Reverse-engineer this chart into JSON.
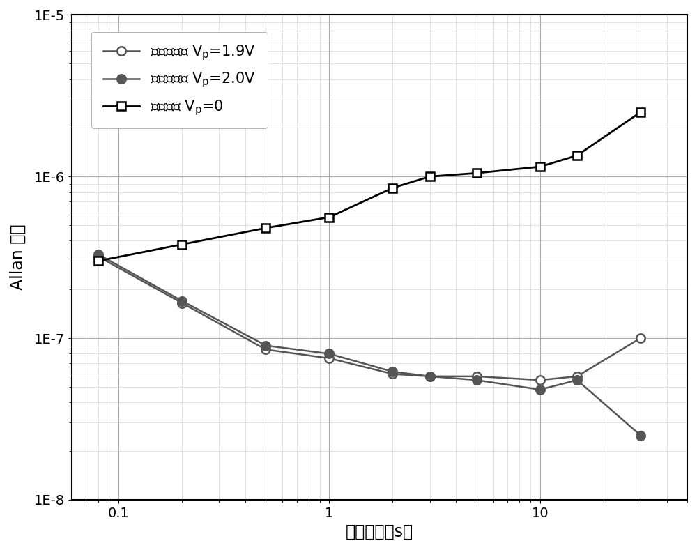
{
  "series": [
    {
      "label": "参数泵强度 V$_\\mathrm{p}$=1.9V",
      "x": [
        0.08,
        0.2,
        0.5,
        1.0,
        2.0,
        3.0,
        5.0,
        10.0,
        15.0,
        30.0
      ],
      "y": [
        3.2e-07,
        1.65e-07,
        8.5e-08,
        7.5e-08,
        6e-08,
        5.8e-08,
        5.8e-08,
        5.5e-08,
        5.8e-08,
        1e-07
      ],
      "marker": "o",
      "markerface": "white",
      "color": "#555555",
      "linewidth": 1.8,
      "markersize": 9,
      "zorder": 3
    },
    {
      "label": "参数泵强度 V$_\\mathrm{p}$=2.0V",
      "x": [
        0.08,
        0.2,
        0.5,
        1.0,
        2.0,
        3.0,
        5.0,
        10.0,
        15.0,
        30.0
      ],
      "y": [
        3.3e-07,
        1.7e-07,
        9e-08,
        8e-08,
        6.2e-08,
        5.8e-08,
        5.5e-08,
        4.8e-08,
        5.5e-08,
        2.5e-08
      ],
      "marker": "o",
      "markerface": "#555555",
      "color": "#555555",
      "linewidth": 1.8,
      "markersize": 9,
      "zorder": 3
    },
    {
      "label": "无参数泵 V$_\\mathrm{p}$=0",
      "x": [
        0.08,
        0.2,
        0.5,
        1.0,
        2.0,
        3.0,
        5.0,
        10.0,
        15.0,
        30.0
      ],
      "y": [
        3e-07,
        3.8e-07,
        4.8e-07,
        5.6e-07,
        8.5e-07,
        1e-06,
        1.05e-06,
        1.15e-06,
        1.35e-06,
        2.5e-06
      ],
      "marker": "s",
      "markerface": "white",
      "color": "#000000",
      "linewidth": 2.0,
      "markersize": 9,
      "zorder": 4
    }
  ],
  "xlabel": "积分时间（s）",
  "ylabel": "Allan 方差",
  "xlim": [
    0.06,
    50
  ],
  "ylim": [
    1e-08,
    1e-05
  ],
  "background_color": "#ffffff",
  "major_grid_color": "#aaaaaa",
  "minor_grid_color": "#cccccc",
  "legend_fontsize": 15,
  "axis_fontsize": 17,
  "tick_fontsize": 14,
  "ytick_labels": [
    "1E-8",
    "1E-7",
    "1E-6",
    "1E-5"
  ],
  "ytick_values": [
    1e-08,
    1e-07,
    1e-06,
    1e-05
  ],
  "xtick_values": [
    0.1,
    1,
    10
  ],
  "xtick_labels": [
    "0.1",
    "1",
    "10"
  ]
}
